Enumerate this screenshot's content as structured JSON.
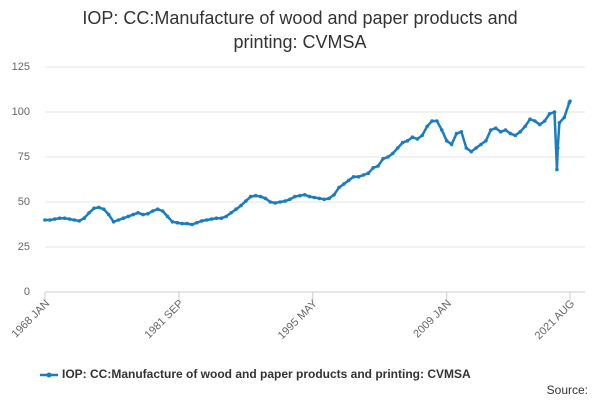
{
  "chart_data": {
    "type": "line",
    "title": "IOP: CC:Manufacture of wood and paper products and printing: CVMSA",
    "source_label": "Source:",
    "x": [
      1968,
      1968.5,
      1969,
      1969.5,
      1970,
      1970.5,
      1971,
      1971.5,
      1972,
      1972.5,
      1973,
      1973.5,
      1974,
      1974.5,
      1975,
      1975.5,
      1976,
      1976.5,
      1977,
      1977.5,
      1978,
      1978.5,
      1979,
      1979.5,
      1980,
      1980.5,
      1981,
      1981.5,
      1982,
      1982.5,
      1983,
      1983.5,
      1984,
      1984.5,
      1985,
      1985.5,
      1986,
      1986.5,
      1987,
      1987.5,
      1988,
      1988.5,
      1989,
      1989.5,
      1990,
      1990.5,
      1991,
      1991.5,
      1992,
      1992.5,
      1993,
      1993.5,
      1994,
      1994.5,
      1995,
      1995.5,
      1996,
      1996.5,
      1997,
      1997.5,
      1998,
      1998.5,
      1999,
      1999.5,
      2000,
      2000.5,
      2001,
      2001.5,
      2002,
      2002.5,
      2003,
      2003.5,
      2004,
      2004.5,
      2005,
      2005.5,
      2006,
      2006.5,
      2007,
      2007.5,
      2008,
      2008.5,
      2009,
      2009.5,
      2010,
      2010.5,
      2011,
      2011.5,
      2012,
      2012.5,
      2013,
      2013.5,
      2014,
      2014.5,
      2015,
      2015.5,
      2016,
      2016.5,
      2017,
      2017.5,
      2018,
      2018.5,
      2019,
      2019.5,
      2020,
      2020.25,
      2020.333,
      2020.5,
      2021,
      2021.5,
      2021.583
    ],
    "series": [
      {
        "name": "IOP: CC:Manufacture of wood and paper products and printing: CVMSA",
        "color": "#1a7dbf",
        "values": [
          40,
          40,
          40.5,
          41,
          41,
          40.5,
          40,
          39.5,
          41,
          44,
          46.5,
          47,
          46,
          43,
          39,
          40,
          41,
          42,
          43,
          44,
          43,
          43.5,
          45,
          46,
          45,
          42,
          39,
          38.5,
          38,
          38,
          37.5,
          38.5,
          39.5,
          40,
          40.5,
          41,
          41,
          42,
          44,
          46,
          48,
          50.5,
          53,
          53.5,
          53,
          52,
          50,
          49.5,
          50,
          50.5,
          51.5,
          53,
          53.5,
          54,
          53,
          52.5,
          52,
          51.5,
          52,
          54,
          58,
          60,
          62,
          64,
          64,
          65,
          66,
          69,
          70,
          74,
          75,
          77,
          80,
          83,
          84,
          86,
          85,
          87,
          92,
          95,
          95,
          90,
          84,
          82,
          88,
          89,
          80,
          78,
          80,
          82,
          84,
          90,
          91,
          89,
          90,
          88,
          87,
          89,
          92,
          96,
          95,
          93,
          95,
          99,
          100,
          68,
          80,
          94,
          97,
          105,
          106
        ]
      }
    ],
    "xlim": [
      1968,
      2021.583
    ],
    "xticks": [
      {
        "value": 1968,
        "label": "1968 JAN"
      },
      {
        "value": 1981.667,
        "label": "1981 SEP"
      },
      {
        "value": 1995.333,
        "label": "1995 MAY"
      },
      {
        "value": 2009,
        "label": "2009 JAN"
      },
      {
        "value": 2021.583,
        "label": "2021 AUG"
      }
    ],
    "ylim": [
      0,
      125
    ],
    "yticks": [
      0,
      25,
      50,
      75,
      100,
      125
    ],
    "grid": true
  }
}
